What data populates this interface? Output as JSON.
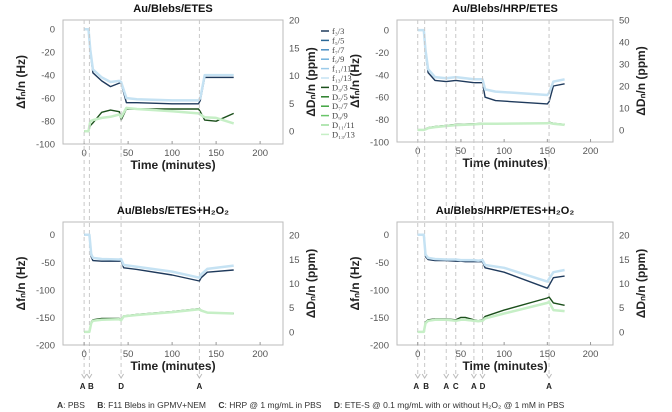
{
  "legend": {
    "entries": [
      "f₃/3",
      "f₅/5",
      "f₇/7",
      "f₉/9",
      "f₁₁/11",
      "f₁₃/13",
      "D₃/3",
      "D₅/5",
      "D₇/7",
      "D₉/9",
      "D₁₁/11",
      "D₁₃/13"
    ],
    "colors": [
      "#1f3a5c",
      "#2b6896",
      "#4a8ec2",
      "#6eb0dd",
      "#9ccbea",
      "#c5e2f3",
      "#1b4f1b",
      "#2a7d2a",
      "#3fa43f",
      "#69c569",
      "#9ade9a",
      "#c6efc6"
    ]
  },
  "annotation_key": [
    {
      "letter": "A",
      "text": ": PBS"
    },
    {
      "letter": "B",
      "text": ": F11 Blebs in GPMV+NEM"
    },
    {
      "letter": "C",
      "text": ": HRP @ 1 mg/mL in PBS"
    },
    {
      "letter": "D",
      "text": ": ETE-S @ 0.1 mg/mL with or without H₂O₂ @ 1 mM in PBS"
    }
  ],
  "chart_data": [
    {
      "type": "line",
      "title": "Au/Blebs/ETES",
      "xlabel": "Time (minutes)",
      "ylabel": "Δfₙ/n (Hz)",
      "y2label": "ΔDₙ/n (ppm)",
      "xlim": [
        -24,
        226
      ],
      "ylim": [
        -100,
        8
      ],
      "y2lim": [
        -2.3,
        20
      ],
      "xticks": [
        0,
        50,
        100,
        150,
        200
      ],
      "yticks": [
        0,
        -20,
        -40,
        -60,
        -80,
        -100
      ],
      "y2ticks": [
        0,
        5,
        10,
        15,
        20
      ],
      "events": [
        {
          "t": 0,
          "label": "A"
        },
        {
          "t": 6,
          "label": "B"
        },
        {
          "t": 42,
          "label": "D"
        },
        {
          "t": 131,
          "label": "A"
        }
      ],
      "x": [
        0,
        5,
        7,
        10,
        20,
        30,
        40,
        42,
        48,
        60,
        100,
        130,
        132,
        137,
        150,
        170
      ],
      "series": [
        {
          "name": "f₃/3",
          "axis": "left",
          "values": [
            0,
            0,
            -20,
            -38,
            -45,
            -50,
            -47,
            -47,
            -64,
            -64,
            -65,
            -65,
            -62,
            -42,
            -42,
            -42
          ]
        },
        {
          "name": "f₁₃/13",
          "axis": "left",
          "values": [
            0,
            0,
            -18,
            -35,
            -42,
            -46,
            -45,
            -46,
            -60,
            -61,
            -62,
            -62,
            -60,
            -40,
            -40,
            -40
          ]
        },
        {
          "name": "D₃/3",
          "axis": "right",
          "values": [
            0,
            0,
            1,
            1.5,
            3.4,
            3.8,
            3.5,
            2,
            4,
            4,
            4,
            4,
            3.5,
            2,
            1.8,
            3.2
          ]
        },
        {
          "name": "D₁₃/13",
          "axis": "right",
          "values": [
            0,
            0,
            1.8,
            2,
            2.4,
            2.6,
            3,
            2.5,
            4.2,
            4,
            3.6,
            3.2,
            3,
            2.5,
            2.4,
            1.4
          ]
        }
      ]
    },
    {
      "type": "line",
      "title": "Au/Blebs/HRP/ETES",
      "xlabel": "Time (minutes)",
      "ylabel": "Δfₙ/n (Hz)",
      "y2label": "ΔDₙ/n (ppm)",
      "xlim": [
        -24,
        226
      ],
      "ylim": [
        -100,
        9
      ],
      "y2lim": [
        -5.5,
        50
      ],
      "xticks": [
        0,
        50,
        100,
        150,
        200
      ],
      "yticks": [
        0,
        -20,
        -40,
        -60,
        -80,
        -100
      ],
      "y2ticks": [
        0,
        10,
        20,
        30,
        40,
        50
      ],
      "events": [
        {
          "t": 0,
          "label": "A"
        },
        {
          "t": 8,
          "label": "B"
        },
        {
          "t": 33,
          "label": "A"
        },
        {
          "t": 44,
          "label": "C"
        },
        {
          "t": 65,
          "label": "A"
        },
        {
          "t": 75,
          "label": "D"
        },
        {
          "t": 152,
          "label": "A"
        }
      ],
      "x": [
        0,
        7,
        9,
        12,
        20,
        33,
        44,
        65,
        75,
        78,
        90,
        150,
        152,
        157,
        170
      ],
      "series": [
        {
          "name": "f₃/3",
          "axis": "left",
          "values": [
            0,
            0,
            -20,
            -38,
            -45,
            -46,
            -45,
            -47,
            -47,
            -60,
            -63,
            -66,
            -64,
            -50,
            -48
          ]
        },
        {
          "name": "f₁₃/13",
          "axis": "left",
          "values": [
            0,
            0,
            -18,
            -35,
            -42,
            -43,
            -42,
            -44,
            -44,
            -53,
            -55,
            -58,
            -56,
            -46,
            -44
          ]
        },
        {
          "name": "D₃/3",
          "axis": "right",
          "values": [
            0,
            0,
            0.5,
            1,
            1.5,
            2,
            2.5,
            2.8,
            3,
            3,
            3,
            3,
            3.5,
            3,
            2.5
          ]
        },
        {
          "name": "D₁₃/13",
          "axis": "right",
          "values": [
            0,
            0,
            0.3,
            0.8,
            1.3,
            1.8,
            2.2,
            2.5,
            2.8,
            2.8,
            2.8,
            3,
            3.2,
            2.8,
            2.3
          ]
        }
      ]
    },
    {
      "type": "line",
      "title": "Au/Blebs/ETES+H₂O₂",
      "xlabel": "Time (minutes)",
      "ylabel": "Δfₙ/n (Hz)",
      "y2label": "ΔDₙ/n (ppm)",
      "xlim": [
        -24,
        226
      ],
      "ylim": [
        -200,
        23
      ],
      "y2lim": [
        -2.7,
        22.7
      ],
      "xticks": [
        0,
        50,
        100,
        150,
        200
      ],
      "yticks": [
        0,
        -50,
        -100,
        -150,
        -200
      ],
      "y2ticks": [
        0,
        5,
        10,
        15,
        20
      ],
      "events": [
        {
          "t": 0,
          "label": "A"
        },
        {
          "t": 6,
          "label": "B"
        },
        {
          "t": 42,
          "label": "D"
        },
        {
          "t": 131,
          "label": "A"
        }
      ],
      "x": [
        0,
        6,
        8,
        10,
        20,
        40,
        42,
        45,
        60,
        100,
        131,
        133,
        140,
        170
      ],
      "series": [
        {
          "name": "f₃/3",
          "axis": "left",
          "values": [
            0,
            0,
            -40,
            -47,
            -48,
            -48,
            -47,
            -60,
            -63,
            -73,
            -84,
            -78,
            -68,
            -64
          ]
        },
        {
          "name": "f₁₃/13",
          "axis": "left",
          "values": [
            0,
            0,
            -35,
            -42,
            -44,
            -45,
            -44,
            -55,
            -58,
            -67,
            -78,
            -72,
            -62,
            -56
          ]
        },
        {
          "name": "D₃/3",
          "axis": "right",
          "values": [
            0,
            0,
            2,
            2.5,
            2.8,
            2.8,
            2.5,
            3.3,
            3.6,
            4.2,
            4.8,
            4.5,
            4,
            3.8
          ]
        },
        {
          "name": "D₁₃/13",
          "axis": "right",
          "values": [
            0,
            0,
            1.8,
            2.3,
            2.5,
            2.6,
            2.4,
            3.2,
            3.5,
            4.1,
            4.7,
            4.4,
            4,
            3.8
          ]
        }
      ]
    },
    {
      "type": "line",
      "title": "Au/Blebs/HRP/ETES+H₂O₂",
      "xlabel": "Time (minutes)",
      "ylabel": "Δfₙ/n (Hz)",
      "y2label": "ΔDₙ/n (ppm)",
      "xlim": [
        -24,
        226
      ],
      "ylim": [
        -200,
        23
      ],
      "y2lim": [
        -2.7,
        22.7
      ],
      "xticks": [
        0,
        50,
        100,
        150,
        200
      ],
      "yticks": [
        0,
        -50,
        -100,
        -150,
        -200
      ],
      "y2ticks": [
        0,
        5,
        10,
        15,
        20
      ],
      "events": [
        {
          "t": 0,
          "label": "A"
        },
        {
          "t": 8,
          "label": "B"
        },
        {
          "t": 33,
          "label": "A"
        },
        {
          "t": 44,
          "label": "C"
        },
        {
          "t": 65,
          "label": "A"
        },
        {
          "t": 75,
          "label": "D"
        },
        {
          "t": 152,
          "label": "A"
        }
      ],
      "x": [
        0,
        7,
        9,
        12,
        20,
        33,
        44,
        50,
        55,
        65,
        70,
        75,
        78,
        100,
        150,
        152,
        157,
        170
      ],
      "series": [
        {
          "name": "f₃/3",
          "axis": "left",
          "values": [
            0,
            0,
            -40,
            -45,
            -47,
            -47,
            -48,
            -48,
            -49,
            -49,
            -49,
            -49,
            -60,
            -68,
            -97,
            -92,
            -78,
            -75
          ]
        },
        {
          "name": "f₁₃/13",
          "axis": "left",
          "values": [
            0,
            0,
            -36,
            -42,
            -44,
            -45,
            -45,
            -46,
            -46,
            -46,
            -47,
            -46,
            -55,
            -60,
            -85,
            -80,
            -68,
            -64
          ]
        },
        {
          "name": "D₃/3",
          "axis": "right",
          "values": [
            0,
            0,
            2,
            2.5,
            2.7,
            2.7,
            2.5,
            3,
            3,
            2.5,
            2.3,
            2.5,
            3.2,
            4.5,
            7,
            7.2,
            6,
            5.5
          ]
        },
        {
          "name": "D₁₃/13",
          "axis": "right",
          "values": [
            0,
            0,
            1.8,
            2.3,
            2.5,
            2.5,
            2.3,
            2.5,
            2.5,
            2.3,
            2.2,
            2.3,
            2.8,
            3.8,
            6,
            6.2,
            4.5,
            4.3
          ]
        }
      ]
    }
  ]
}
